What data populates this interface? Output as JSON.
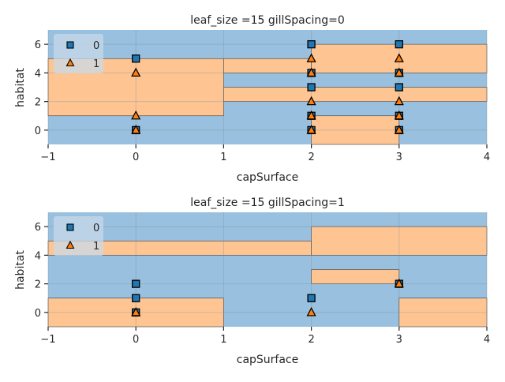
{
  "chart_data": [
    {
      "type": "scatter",
      "title": "leaf_size =15 gillSpacing=0",
      "xlabel": "capSurface",
      "ylabel": "habitat",
      "xlim": [
        -1,
        4
      ],
      "ylim": [
        -1,
        7
      ],
      "xticks": [
        "−1",
        "0",
        "1",
        "2",
        "3",
        "4"
      ],
      "xtick_values": [
        -1,
        0,
        1,
        2,
        3,
        4
      ],
      "yticks": [
        "0",
        "2",
        "4",
        "6"
      ],
      "ytick_values": [
        0,
        2,
        4,
        6
      ],
      "grid": true,
      "legend_position": "top-left",
      "region_colors": {
        "0": "#99c0de",
        "1": "#fec592"
      },
      "decision_regions": [
        {
          "class": 1,
          "x": [
            -1,
            1
          ],
          "y": [
            1,
            5
          ]
        },
        {
          "class": 1,
          "x": [
            1,
            4
          ],
          "y": [
            2,
            3
          ]
        },
        {
          "class": 1,
          "x": [
            1,
            2
          ],
          "y": [
            4,
            5
          ]
        },
        {
          "class": 1,
          "x": [
            2,
            3
          ],
          "y": [
            -1,
            1
          ]
        },
        {
          "class": 1,
          "x": [
            2,
            4
          ],
          "y": [
            4,
            6
          ]
        }
      ],
      "series": [
        {
          "name": "0",
          "marker": "square",
          "color": "#1f77b4",
          "x": [
            0,
            0,
            2,
            2,
            2,
            2,
            2,
            3,
            3,
            3,
            3,
            3
          ],
          "y": [
            5,
            0,
            6,
            4,
            3,
            1,
            0,
            6,
            4,
            3,
            1,
            0
          ]
        },
        {
          "name": "1",
          "marker": "triangle",
          "color": "#ff7f0e",
          "x": [
            0,
            0,
            0,
            2,
            2,
            2,
            2,
            2,
            3,
            3,
            3,
            3,
            3
          ],
          "y": [
            4,
            1,
            0,
            5,
            4,
            2,
            1,
            0,
            5,
            4,
            2,
            1,
            0
          ]
        }
      ]
    },
    {
      "type": "scatter",
      "title": "leaf_size =15 gillSpacing=1",
      "xlabel": "capSurface",
      "ylabel": "habitat",
      "xlim": [
        -1,
        4
      ],
      "ylim": [
        -1,
        7
      ],
      "xticks": [
        "−1",
        "0",
        "1",
        "2",
        "3",
        "4"
      ],
      "xtick_values": [
        -1,
        0,
        1,
        2,
        3,
        4
      ],
      "yticks": [
        "0",
        "2",
        "4",
        "6"
      ],
      "ytick_values": [
        0,
        2,
        4,
        6
      ],
      "grid": true,
      "legend_position": "top-left",
      "region_colors": {
        "0": "#99c0de",
        "1": "#fec592"
      },
      "decision_regions": [
        {
          "class": 1,
          "x": [
            -1,
            1
          ],
          "y": [
            -1,
            1
          ]
        },
        {
          "class": 1,
          "x": [
            3,
            4
          ],
          "y": [
            -1,
            1
          ]
        },
        {
          "class": 1,
          "x": [
            2,
            3
          ],
          "y": [
            2,
            3
          ]
        },
        {
          "class": 1,
          "x": [
            -1,
            2
          ],
          "y": [
            4,
            5
          ]
        },
        {
          "class": 1,
          "x": [
            2,
            4
          ],
          "y": [
            4,
            6
          ]
        }
      ],
      "series": [
        {
          "name": "0",
          "marker": "square",
          "color": "#1f77b4",
          "x": [
            0,
            0,
            0,
            2,
            3
          ],
          "y": [
            2,
            1,
            0,
            1,
            2
          ]
        },
        {
          "name": "1",
          "marker": "triangle",
          "color": "#ff7f0e",
          "x": [
            0,
            2,
            3
          ],
          "y": [
            0,
            0,
            2
          ]
        }
      ]
    }
  ]
}
